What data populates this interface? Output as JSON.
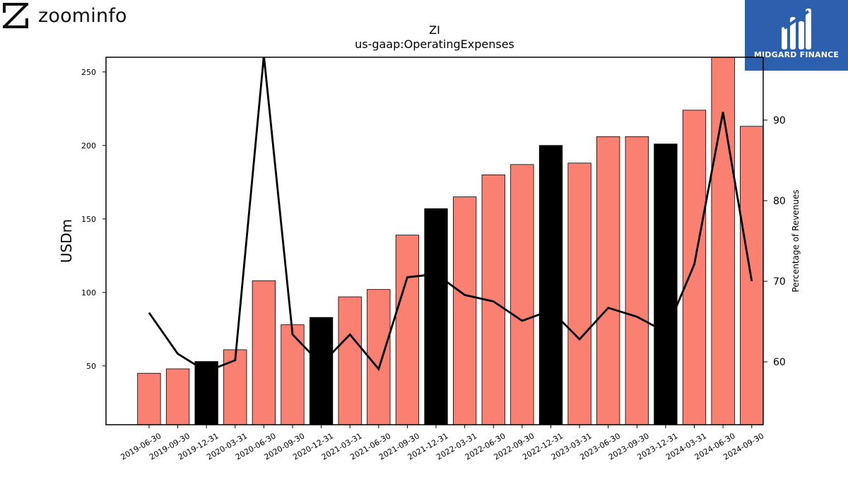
{
  "logos": {
    "left_text": "zoominfo",
    "right_text": "MIDGARD FINANCE"
  },
  "colors": {
    "bar_default": "#fa8072",
    "bar_highlight": "#000000",
    "line": "#000000"
  },
  "chart_data": {
    "type": "bar",
    "title": "ZI",
    "subtitle": "us-gaap:OperatingExpenses",
    "ylabel": "USDm",
    "y2label": "Percentage of Revenues",
    "ylim": [
      10,
      260
    ],
    "y2lim": [
      52.2,
      97.8
    ],
    "yticks": [
      50,
      100,
      150,
      200,
      250
    ],
    "y2ticks": [
      60,
      70,
      80,
      90
    ],
    "categories": [
      "2019-06-30",
      "2019-09-30",
      "2019-12-31",
      "2020-03-31",
      "2020-06-30",
      "2020-09-30",
      "2020-12-31",
      "2021-03-31",
      "2021-06-30",
      "2021-09-30",
      "2021-12-31",
      "2022-03-31",
      "2022-06-30",
      "2022-09-30",
      "2022-12-31",
      "2023-03-31",
      "2023-06-30",
      "2023-09-30",
      "2023-12-31",
      "2024-03-31",
      "2024-06-30",
      "2024-09-30"
    ],
    "series": [
      {
        "axis": "left",
        "kind": "bar",
        "values": [
          45,
          48,
          53,
          61,
          108,
          78,
          83,
          97,
          102,
          139,
          157,
          165,
          180,
          187,
          200,
          188,
          206,
          206,
          201,
          224,
          260,
          213
        ],
        "highlight": [
          false,
          false,
          true,
          false,
          false,
          false,
          true,
          false,
          false,
          false,
          true,
          false,
          false,
          false,
          true,
          false,
          false,
          false,
          true,
          false,
          false,
          false
        ]
      },
      {
        "axis": "right",
        "kind": "line",
        "values": [
          66.1,
          61.0,
          58.8,
          60.2,
          98.0,
          63.4,
          59.7,
          63.4,
          59.1,
          70.5,
          70.9,
          68.3,
          67.5,
          65.1,
          66.4,
          62.8,
          66.7,
          65.6,
          63.7,
          72.1,
          91.0,
          70.0
        ]
      }
    ]
  }
}
